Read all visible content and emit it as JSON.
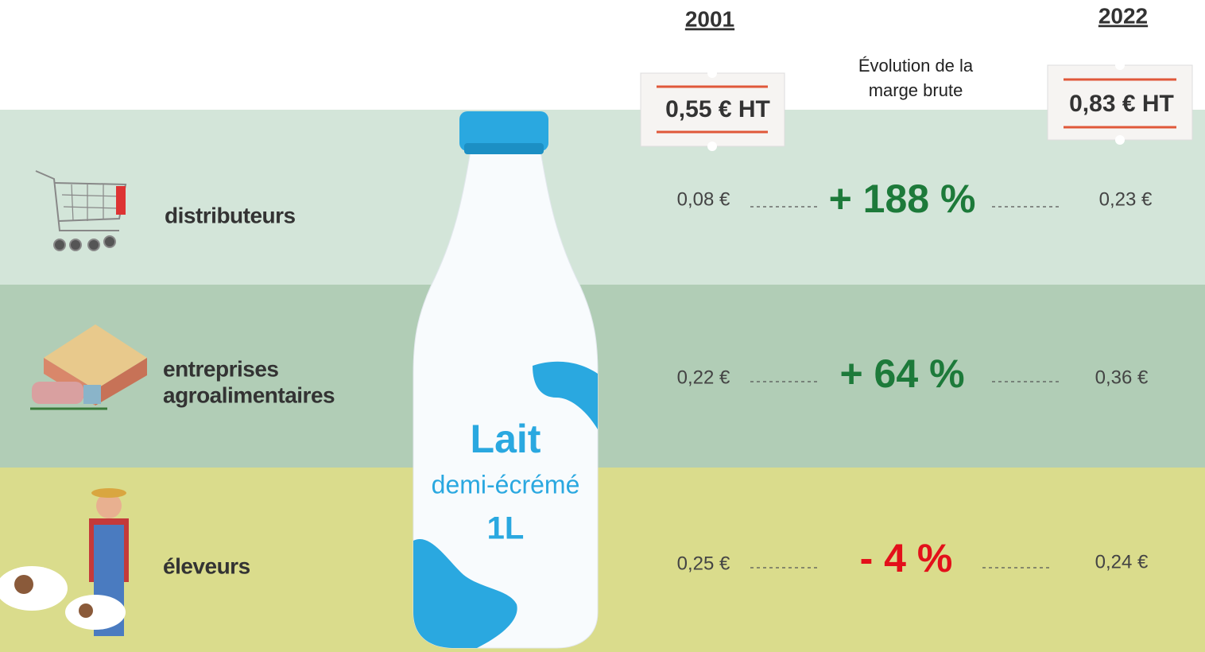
{
  "header": {
    "year_2001": "2001",
    "year_2022": "2022",
    "evolution_label": [
      "Évolution de la",
      "marge brute"
    ],
    "price_2001": "0,55 € HT",
    "price_2022": "0,83 € HT"
  },
  "bottle": {
    "line1": "Lait",
    "line2": "demi-écrémé",
    "line3": "1L"
  },
  "rows": [
    {
      "label": [
        "distributeurs"
      ],
      "value_2001": "0,08 €",
      "evolution": "+ 188 %",
      "value_2022": "0,23 €"
    },
    {
      "label": [
        "entreprises",
        "agroalimentaires"
      ],
      "value_2001": "0,22 €",
      "evolution": "+ 64 %",
      "value_2022": "0,36 €"
    },
    {
      "label": [
        "éleveurs"
      ],
      "value_2001": "0,25 €",
      "evolution": "- 4 %",
      "value_2022": "0,24 €"
    }
  ]
}
